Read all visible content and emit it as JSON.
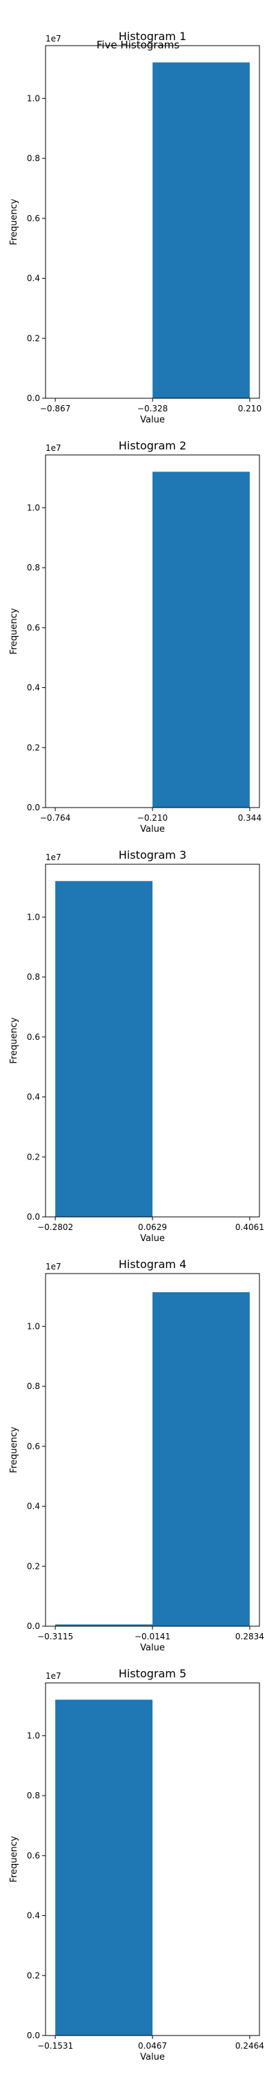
{
  "figure_title": "Five Histograms",
  "chart_data": [
    {
      "type": "bar",
      "title": "Histogram 1",
      "xlabel": "Value",
      "ylabel": "Frequency",
      "offset_label": "1e7",
      "bin_edges": [
        -0.867,
        -0.328,
        0.21
      ],
      "x_tick_labels": [
        "−0.867",
        "−0.328",
        "0.210"
      ],
      "counts": [
        0,
        11200000
      ],
      "ylim": [
        0,
        11760000
      ],
      "y_ticks": [
        0,
        2000000,
        4000000,
        6000000,
        8000000,
        10000000
      ],
      "y_tick_labels": [
        "0.0",
        "0.2",
        "0.4",
        "0.6",
        "0.8",
        "1.0"
      ],
      "bar_color": "#1f77b4"
    },
    {
      "type": "bar",
      "title": "Histogram 2",
      "xlabel": "Value",
      "ylabel": "Frequency",
      "offset_label": "1e7",
      "bin_edges": [
        -0.764,
        -0.21,
        0.344
      ],
      "x_tick_labels": [
        "−0.764",
        "−0.210",
        "0.344"
      ],
      "counts": [
        0,
        11200000
      ],
      "ylim": [
        0,
        11760000
      ],
      "y_ticks": [
        0,
        2000000,
        4000000,
        6000000,
        8000000,
        10000000
      ],
      "y_tick_labels": [
        "0.0",
        "0.2",
        "0.4",
        "0.6",
        "0.8",
        "1.0"
      ],
      "bar_color": "#1f77b4"
    },
    {
      "type": "bar",
      "title": "Histogram 3",
      "xlabel": "Value",
      "ylabel": "Frequency",
      "offset_label": "1e7",
      "bin_edges": [
        -0.2802,
        0.0629,
        0.4061
      ],
      "x_tick_labels": [
        "−0.2802",
        "0.0629",
        "0.4061"
      ],
      "counts": [
        11200000,
        0
      ],
      "ylim": [
        0,
        11760000
      ],
      "y_ticks": [
        0,
        2000000,
        4000000,
        6000000,
        8000000,
        10000000
      ],
      "y_tick_labels": [
        "0.0",
        "0.2",
        "0.4",
        "0.6",
        "0.8",
        "1.0"
      ],
      "bar_color": "#1f77b4"
    },
    {
      "type": "bar",
      "title": "Histogram 4",
      "xlabel": "Value",
      "ylabel": "Frequency",
      "offset_label": "1e7",
      "bin_edges": [
        -0.3115,
        -0.0141,
        0.2834
      ],
      "x_tick_labels": [
        "−0.3115",
        "−0.0141",
        "0.2834"
      ],
      "counts": [
        60000,
        11140000
      ],
      "ylim": [
        0,
        11760000
      ],
      "y_ticks": [
        0,
        2000000,
        4000000,
        6000000,
        8000000,
        10000000
      ],
      "y_tick_labels": [
        "0.0",
        "0.2",
        "0.4",
        "0.6",
        "0.8",
        "1.0"
      ],
      "bar_color": "#1f77b4"
    },
    {
      "type": "bar",
      "title": "Histogram 5",
      "xlabel": "Value",
      "ylabel": "Frequency",
      "offset_label": "1e7",
      "bin_edges": [
        -0.1531,
        0.0467,
        0.2464
      ],
      "x_tick_labels": [
        "−0.1531",
        "0.0467",
        "0.2464"
      ],
      "counts": [
        11200000,
        0
      ],
      "ylim": [
        0,
        11760000
      ],
      "y_ticks": [
        0,
        2000000,
        4000000,
        6000000,
        8000000,
        10000000
      ],
      "y_tick_labels": [
        "0.0",
        "0.2",
        "0.4",
        "0.6",
        "0.8",
        "1.0"
      ],
      "bar_color": "#1f77b4"
    }
  ]
}
